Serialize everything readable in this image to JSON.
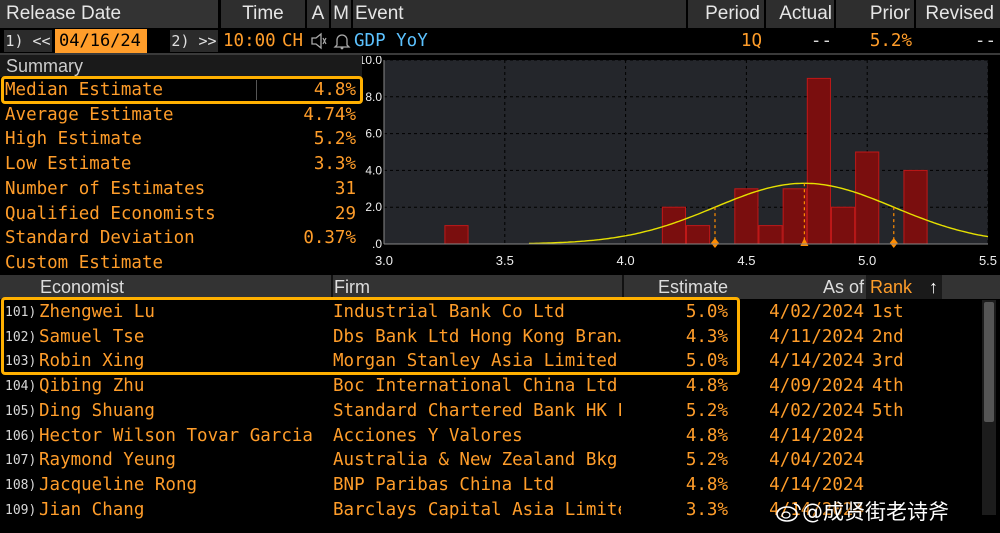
{
  "header": {
    "release_date_label": "Release Date",
    "time_label": "Time",
    "a_label": "A",
    "m_label": "M",
    "event_label": "Event",
    "period_label": "Period",
    "actual_label": "Actual",
    "prior_label": "Prior",
    "revised_label": "Revised"
  },
  "release": {
    "prev_btn": "1) <<",
    "date": "04/16/24",
    "next_btn": "2) >>",
    "time": "10:00",
    "country": "CH",
    "event": "GDP YoY",
    "period": "1Q",
    "actual": "--",
    "prior": "5.2%",
    "revised": "--"
  },
  "summary": {
    "title": "Summary",
    "rows": [
      {
        "label": "Median Estimate",
        "value": "4.8%"
      },
      {
        "label": "Average Estimate",
        "value": "4.74%"
      },
      {
        "label": "High Estimate",
        "value": "5.2%"
      },
      {
        "label": "Low Estimate",
        "value": "3.3%"
      },
      {
        "label": "Number of Estimates",
        "value": "31"
      },
      {
        "label": "Qualified Economists",
        "value": "29"
      },
      {
        "label": "Standard Deviation",
        "value": "0.37%"
      },
      {
        "label": "Custom Estimate",
        "value": ""
      }
    ]
  },
  "chart_data": {
    "type": "bar",
    "xlim": [
      3.0,
      5.5
    ],
    "ylim": [
      0,
      10
    ],
    "x_ticks": [
      "3.0",
      "3.5",
      "4.0",
      "4.5",
      "5.0",
      "5.5"
    ],
    "y_ticks": [
      ".0",
      "2.0",
      "4.0",
      "6.0",
      "8.0",
      "10.0"
    ],
    "bin_width": 0.1,
    "bars": [
      {
        "x": 3.3,
        "value": 1
      },
      {
        "x": 4.2,
        "value": 2
      },
      {
        "x": 4.3,
        "value": 1
      },
      {
        "x": 4.5,
        "value": 3
      },
      {
        "x": 4.6,
        "value": 1
      },
      {
        "x": 4.7,
        "value": 3
      },
      {
        "x": 4.8,
        "value": 9
      },
      {
        "x": 4.9,
        "value": 2
      },
      {
        "x": 5.0,
        "value": 5
      },
      {
        "x": 5.2,
        "value": 4
      }
    ],
    "normal_curve": {
      "mean": 4.74,
      "std": 0.37,
      "peak": 3.3
    },
    "markers": [
      4.37,
      4.74,
      5.11
    ],
    "grid": true,
    "colors": {
      "bar": "#7a0e0e",
      "bar_edge": "#c01818",
      "curve": "#e6e000",
      "marker": "#ff8c00",
      "bg": "#24262b"
    }
  },
  "table": {
    "headers": {
      "economist": "Economist",
      "firm": "Firm",
      "estimate": "Estimate",
      "as_of": "As of",
      "rank": "Rank",
      "sort_arrow": "↑"
    },
    "rows": [
      {
        "num": "101)",
        "economist": "Zhengwei Lu",
        "firm": "Industrial Bank Co Ltd",
        "estimate": "5.0%",
        "as_of": "4/02/2024",
        "rank": "1st"
      },
      {
        "num": "102)",
        "economist": "Samuel Tse",
        "firm": "Dbs Bank Ltd Hong Kong Bran…",
        "estimate": "4.3%",
        "as_of": "4/11/2024",
        "rank": "2nd"
      },
      {
        "num": "103)",
        "economist": "Robin Xing",
        "firm": "Morgan Stanley Asia Limited",
        "estimate": "5.0%",
        "as_of": "4/14/2024",
        "rank": "3rd"
      },
      {
        "num": "104)",
        "economist": "Qibing Zhu",
        "firm": "Boc International China Ltd",
        "estimate": "4.8%",
        "as_of": "4/09/2024",
        "rank": "4th"
      },
      {
        "num": "105)",
        "economist": "Ding Shuang",
        "firm": "Standard Chartered Bank HK L…",
        "estimate": "5.2%",
        "as_of": "4/02/2024",
        "rank": "5th"
      },
      {
        "num": "106)",
        "economist": "Hector Wilson Tovar Garcia",
        "firm": "Acciones Y Valores",
        "estimate": "4.8%",
        "as_of": "4/14/2024",
        "rank": ""
      },
      {
        "num": "107)",
        "economist": "Raymond Yeung",
        "firm": "Australia & New Zealand Bkg …",
        "estimate": "5.2%",
        "as_of": "4/04/2024",
        "rank": ""
      },
      {
        "num": "108)",
        "economist": "Jacqueline Rong",
        "firm": "BNP Paribas China Ltd",
        "estimate": "4.8%",
        "as_of": "4/14/2024",
        "rank": ""
      },
      {
        "num": "109)",
        "economist": "Jian Chang",
        "firm": "Barclays Capital Asia Limited",
        "estimate": "3.3%",
        "as_of": "4/14/2024",
        "rank": ""
      }
    ]
  },
  "watermark": "@成贤街老诗斧"
}
